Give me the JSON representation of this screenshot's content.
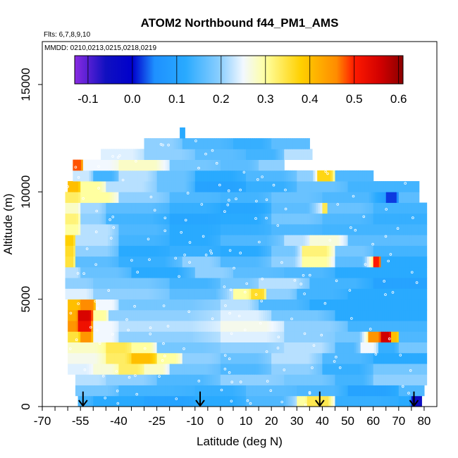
{
  "chart_data": {
    "type": "heatmap",
    "title": "ATOM2 Northbound f44_PM1_AMS",
    "flights_note": "Flts: 6,7,8,9,10",
    "dates_note": "MMDD: 0210,0213,0215,0218,0219",
    "xlabel": "Latitude (deg N)",
    "ylabel": "Altitude (m)",
    "xlim": [
      -70,
      85
    ],
    "ylim": [
      0,
      17000
    ],
    "x_tick_labels": [
      "-70",
      "-55",
      "-40",
      "-25",
      "-10",
      "0",
      "10",
      "20",
      "30",
      "40",
      "50",
      "60",
      "70",
      "80"
    ],
    "x_tick_positions": [
      -70,
      -55,
      -40,
      -25,
      -10,
      0,
      10,
      20,
      30,
      40,
      50,
      60,
      70,
      80
    ],
    "y_ticks": [
      0,
      5000,
      10000,
      15000
    ],
    "colorbar": {
      "min": -0.13,
      "max": 0.61,
      "tick_labels": [
        "-0.1",
        "0.0",
        "0.1",
        "0.2",
        "0.3",
        "0.4",
        "0.5",
        "0.6"
      ],
      "tick_values": [
        -0.1,
        0.0,
        0.1,
        0.2,
        0.3,
        0.4,
        0.5,
        0.6
      ],
      "color_stops": [
        {
          "v": -0.13,
          "c": "#8a2be2"
        },
        {
          "v": -0.06,
          "c": "#1010c0"
        },
        {
          "v": 0.0,
          "c": "#0000cc"
        },
        {
          "v": 0.05,
          "c": "#1e90ff"
        },
        {
          "v": 0.12,
          "c": "#29aaff"
        },
        {
          "v": 0.2,
          "c": "#8fd0ff"
        },
        {
          "v": 0.25,
          "c": "#f2f8ff"
        },
        {
          "v": 0.3,
          "c": "#ffffa0"
        },
        {
          "v": 0.38,
          "c": "#ffd000"
        },
        {
          "v": 0.46,
          "c": "#ff8c00"
        },
        {
          "v": 0.5,
          "c": "#ff1a00"
        },
        {
          "v": 0.56,
          "c": "#d00000"
        },
        {
          "v": 0.61,
          "c": "#8b0000"
        }
      ]
    },
    "profile_arrows_lat": [
      -54,
      -8,
      39,
      76
    ],
    "altitude_bands": [
      {
        "alt": 250,
        "lat_min": -56,
        "lat_max": 80,
        "seg": [
          [
            -56,
            -50,
            0.14
          ],
          [
            -50,
            -30,
            0.12
          ],
          [
            -30,
            -10,
            0.1
          ],
          [
            -10,
            10,
            0.12
          ],
          [
            10,
            30,
            0.15
          ],
          [
            30,
            34,
            0.3
          ],
          [
            34,
            45,
            0.34
          ],
          [
            45,
            70,
            0.13
          ],
          [
            70,
            75,
            0.12
          ],
          [
            75,
            79,
            -0.05
          ]
        ]
      },
      {
        "alt": 750,
        "lat_min": -57,
        "lat_max": 80,
        "seg": [
          [
            -57,
            -40,
            0.18
          ],
          [
            -40,
            -10,
            0.14
          ],
          [
            -10,
            10,
            0.13
          ],
          [
            10,
            30,
            0.16
          ],
          [
            30,
            50,
            0.15
          ],
          [
            50,
            70,
            0.1
          ],
          [
            70,
            80,
            0.15
          ]
        ]
      },
      {
        "alt": 1250,
        "lat_min": -57,
        "lat_max": 81,
        "seg": [
          [
            -57,
            -45,
            0.22
          ],
          [
            -45,
            -25,
            0.2
          ],
          [
            -25,
            0,
            0.15
          ],
          [
            0,
            25,
            0.2
          ],
          [
            25,
            45,
            0.18
          ],
          [
            45,
            60,
            0.14
          ],
          [
            60,
            81,
            0.2
          ]
        ]
      },
      {
        "alt": 1750,
        "lat_min": -60,
        "lat_max": 81,
        "seg": [
          [
            -60,
            -50,
            0.24
          ],
          [
            -50,
            -40,
            0.27
          ],
          [
            -40,
            -30,
            0.33
          ],
          [
            -30,
            -20,
            0.28
          ],
          [
            -20,
            0,
            0.18
          ],
          [
            0,
            20,
            0.15
          ],
          [
            20,
            40,
            0.2
          ],
          [
            40,
            60,
            0.13
          ],
          [
            60,
            81,
            0.18
          ]
        ]
      },
      {
        "alt": 2250,
        "lat_min": -60,
        "lat_max": 81,
        "seg": [
          [
            -60,
            -45,
            0.26
          ],
          [
            -45,
            -35,
            0.33
          ],
          [
            -35,
            -25,
            0.4
          ],
          [
            -25,
            -15,
            0.3
          ],
          [
            -15,
            0,
            0.2
          ],
          [
            0,
            20,
            0.17
          ],
          [
            20,
            40,
            0.22
          ],
          [
            40,
            60,
            0.15
          ],
          [
            60,
            81,
            0.12
          ]
        ]
      },
      {
        "alt": 2750,
        "lat_min": -60,
        "lat_max": 81,
        "seg": [
          [
            -60,
            -45,
            0.28
          ],
          [
            -45,
            -35,
            0.34
          ],
          [
            -35,
            -25,
            0.3
          ],
          [
            -25,
            0,
            0.18
          ],
          [
            0,
            25,
            0.2
          ],
          [
            25,
            45,
            0.22
          ],
          [
            45,
            55,
            0.15
          ],
          [
            55,
            62,
            0.25
          ],
          [
            62,
            70,
            0.13
          ],
          [
            70,
            81,
            0.18
          ]
        ]
      },
      {
        "alt": 3250,
        "lat_min": -60,
        "lat_max": 81,
        "seg": [
          [
            -60,
            -55,
            0.35
          ],
          [
            -55,
            -50,
            0.45
          ],
          [
            -50,
            -40,
            0.25
          ],
          [
            -40,
            0,
            0.2
          ],
          [
            0,
            25,
            0.24
          ],
          [
            25,
            45,
            0.2
          ],
          [
            45,
            58,
            0.18
          ],
          [
            58,
            63,
            0.45
          ],
          [
            63,
            67,
            0.56
          ],
          [
            67,
            70,
            0.4
          ],
          [
            70,
            81,
            0.15
          ]
        ]
      },
      {
        "alt": 3750,
        "lat_min": -60,
        "lat_max": 81,
        "seg": [
          [
            -60,
            -56,
            0.45
          ],
          [
            -56,
            -50,
            0.52
          ],
          [
            -50,
            -40,
            0.25
          ],
          [
            -40,
            0,
            0.22
          ],
          [
            0,
            25,
            0.26
          ],
          [
            25,
            50,
            0.2
          ],
          [
            50,
            81,
            0.14
          ]
        ]
      },
      {
        "alt": 4250,
        "lat_min": -60,
        "lat_max": 81,
        "seg": [
          [
            -60,
            -56,
            0.42
          ],
          [
            -56,
            -50,
            0.55
          ],
          [
            -50,
            -44,
            0.3
          ],
          [
            -44,
            0,
            0.2
          ],
          [
            0,
            20,
            0.24
          ],
          [
            20,
            45,
            0.18
          ],
          [
            45,
            81,
            0.12
          ]
        ]
      },
      {
        "alt": 4750,
        "lat_min": -60,
        "lat_max": 81,
        "seg": [
          [
            -60,
            -55,
            0.4
          ],
          [
            -55,
            -49,
            0.46
          ],
          [
            -49,
            -40,
            0.25
          ],
          [
            -40,
            0,
            0.18
          ],
          [
            0,
            15,
            0.22
          ],
          [
            15,
            35,
            0.15
          ],
          [
            35,
            81,
            0.12
          ]
        ]
      },
      {
        "alt": 5250,
        "lat_min": -61,
        "lat_max": 81,
        "seg": [
          [
            -61,
            -50,
            0.24
          ],
          [
            -50,
            -20,
            0.2
          ],
          [
            -20,
            5,
            0.16
          ],
          [
            5,
            12,
            0.3
          ],
          [
            12,
            18,
            0.36
          ],
          [
            18,
            30,
            0.2
          ],
          [
            30,
            50,
            0.14
          ],
          [
            50,
            81,
            0.12
          ]
        ]
      },
      {
        "alt": 5750,
        "lat_min": -61,
        "lat_max": 81,
        "seg": [
          [
            -61,
            -50,
            0.2
          ],
          [
            -50,
            -20,
            0.18
          ],
          [
            -20,
            0,
            0.14
          ],
          [
            0,
            15,
            0.18
          ],
          [
            15,
            35,
            0.22
          ],
          [
            35,
            60,
            0.14
          ],
          [
            60,
            81,
            0.1
          ]
        ]
      },
      {
        "alt": 6250,
        "lat_min": -61,
        "lat_max": 81,
        "seg": [
          [
            -61,
            -55,
            0.22
          ],
          [
            -55,
            -35,
            0.17
          ],
          [
            -35,
            -10,
            0.12
          ],
          [
            -10,
            5,
            0.2
          ],
          [
            5,
            25,
            0.16
          ],
          [
            25,
            45,
            0.15
          ],
          [
            45,
            81,
            0.12
          ]
        ]
      },
      {
        "alt": 6750,
        "lat_min": -61,
        "lat_max": 81,
        "seg": [
          [
            -61,
            -57,
            0.35
          ],
          [
            -57,
            -40,
            0.16
          ],
          [
            -40,
            -15,
            0.13
          ],
          [
            -15,
            0,
            0.2
          ],
          [
            0,
            20,
            0.15
          ],
          [
            20,
            32,
            0.2
          ],
          [
            32,
            45,
            0.3
          ],
          [
            45,
            60,
            0.16
          ],
          [
            60,
            63,
            0.5
          ],
          [
            63,
            81,
            0.12
          ]
        ]
      },
      {
        "alt": 7250,
        "lat_min": -61,
        "lat_max": 81,
        "seg": [
          [
            -61,
            -57,
            0.36
          ],
          [
            -57,
            -40,
            0.2
          ],
          [
            -40,
            -20,
            0.12
          ],
          [
            -20,
            0,
            0.13
          ],
          [
            0,
            20,
            0.12
          ],
          [
            20,
            32,
            0.18
          ],
          [
            32,
            45,
            0.32
          ],
          [
            45,
            60,
            0.18
          ],
          [
            60,
            81,
            0.14
          ]
        ]
      },
      {
        "alt": 7750,
        "lat_min": -61,
        "lat_max": 81,
        "seg": [
          [
            -61,
            -57,
            0.38
          ],
          [
            -57,
            -40,
            0.22
          ],
          [
            -40,
            -20,
            0.14
          ],
          [
            -20,
            0,
            0.12
          ],
          [
            0,
            25,
            0.15
          ],
          [
            25,
            35,
            0.22
          ],
          [
            35,
            50,
            0.27
          ],
          [
            50,
            81,
            0.16
          ]
        ]
      },
      {
        "alt": 8250,
        "lat_min": -61,
        "lat_max": 81,
        "seg": [
          [
            -61,
            -55,
            0.3
          ],
          [
            -55,
            -40,
            0.22
          ],
          [
            -40,
            -20,
            0.15
          ],
          [
            -20,
            0,
            0.12
          ],
          [
            0,
            20,
            0.13
          ],
          [
            20,
            40,
            0.15
          ],
          [
            40,
            81,
            0.14
          ]
        ]
      },
      {
        "alt": 8750,
        "lat_min": -61,
        "lat_max": 81,
        "seg": [
          [
            -61,
            -55,
            0.32
          ],
          [
            -55,
            -45,
            0.2
          ],
          [
            -45,
            -20,
            0.14
          ],
          [
            -20,
            0,
            0.11
          ],
          [
            0,
            20,
            0.12
          ],
          [
            20,
            40,
            0.18
          ],
          [
            40,
            60,
            0.15
          ],
          [
            60,
            81,
            0.13
          ]
        ]
      },
      {
        "alt": 9250,
        "lat_min": -61,
        "lat_max": 81,
        "seg": [
          [
            -61,
            -55,
            0.28
          ],
          [
            -55,
            -45,
            0.21
          ],
          [
            -45,
            -20,
            0.16
          ],
          [
            -20,
            0,
            0.13
          ],
          [
            0,
            20,
            0.11
          ],
          [
            20,
            40,
            0.16
          ],
          [
            40,
            42,
            0.34
          ],
          [
            42,
            60,
            0.17
          ],
          [
            60,
            81,
            0.14
          ]
        ]
      },
      {
        "alt": 9750,
        "lat_min": -61,
        "lat_max": 78,
        "seg": [
          [
            -61,
            -55,
            0.33
          ],
          [
            -55,
            -40,
            0.3
          ],
          [
            -40,
            -20,
            0.2
          ],
          [
            -20,
            0,
            0.15
          ],
          [
            0,
            20,
            0.14
          ],
          [
            20,
            40,
            0.17
          ],
          [
            40,
            65,
            0.15
          ],
          [
            65,
            70,
            0.02
          ],
          [
            70,
            78,
            0.16
          ]
        ]
      },
      {
        "alt": 10250,
        "lat_min": -60,
        "lat_max": 78,
        "seg": [
          [
            -60,
            -55,
            0.4
          ],
          [
            -55,
            -45,
            0.3
          ],
          [
            -45,
            -25,
            0.22
          ],
          [
            -25,
            -10,
            0.17
          ],
          [
            -10,
            10,
            0.1
          ],
          [
            10,
            30,
            0.13
          ],
          [
            30,
            50,
            0.17
          ],
          [
            50,
            78,
            0.14
          ]
        ]
      },
      {
        "alt": 10750,
        "lat_min": -58,
        "lat_max": 60,
        "seg": [
          [
            -58,
            -50,
            0.23
          ],
          [
            -50,
            -40,
            0.14
          ],
          [
            -40,
            -25,
            0.22
          ],
          [
            -25,
            -10,
            0.17
          ],
          [
            -10,
            10,
            0.12
          ],
          [
            10,
            30,
            0.15
          ],
          [
            30,
            38,
            0.2
          ],
          [
            38,
            45,
            0.37
          ],
          [
            45,
            60,
            0.15
          ]
        ]
      },
      {
        "alt": 11250,
        "lat_min": -58,
        "lat_max": 25,
        "seg": [
          [
            -58,
            -54,
            0.48
          ],
          [
            -54,
            -40,
            0.25
          ],
          [
            -40,
            -20,
            0.28
          ],
          [
            -20,
            0,
            0.18
          ],
          [
            0,
            15,
            0.16
          ],
          [
            15,
            25,
            0.2
          ]
        ]
      },
      {
        "alt": 11750,
        "lat_min": -47,
        "lat_max": 36,
        "seg": [
          [
            -47,
            -30,
            0.24
          ],
          [
            -30,
            -10,
            0.2
          ],
          [
            -10,
            10,
            0.16
          ],
          [
            10,
            25,
            0.14
          ],
          [
            25,
            36,
            0.22
          ]
        ]
      },
      {
        "alt": 12250,
        "lat_min": -30,
        "lat_max": 35,
        "seg": [
          [
            -30,
            -15,
            0.2
          ],
          [
            -15,
            5,
            0.15
          ],
          [
            5,
            20,
            0.13
          ],
          [
            20,
            35,
            0.16
          ]
        ]
      },
      {
        "alt": 12750,
        "lat_min": -16,
        "lat_max": -14,
        "seg": [
          [
            -16,
            -14,
            0.12
          ]
        ]
      }
    ]
  }
}
